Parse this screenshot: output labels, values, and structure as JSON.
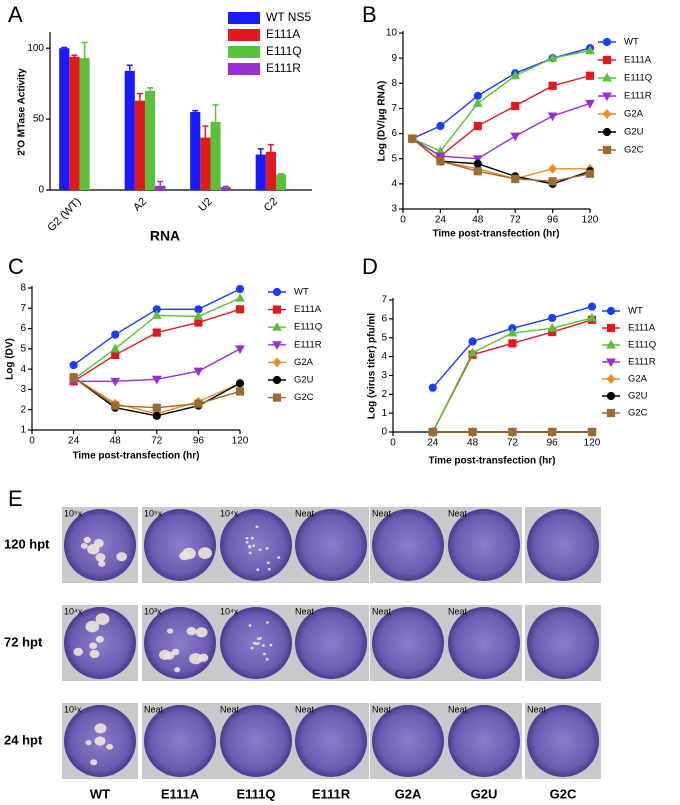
{
  "chart_data": [
    {
      "type": "bar",
      "label": "A",
      "ylabel": "2'O MTase Activity",
      "xlabel": "RNA",
      "categories": [
        "G2 (WT)",
        "A2",
        "U2",
        "C2"
      ],
      "series": [
        {
          "name": "WT NS5",
          "color": "#1a1aff",
          "values": [
            100,
            84,
            55,
            25
          ],
          "errors": [
            0.5,
            4,
            1,
            4
          ]
        },
        {
          "name": "E111A",
          "color": "#e0191e",
          "values": [
            94,
            63,
            37,
            27
          ],
          "errors": [
            1,
            5,
            8,
            5
          ]
        },
        {
          "name": "E111Q",
          "color": "#5bbf3a",
          "values": [
            93,
            70,
            48,
            11
          ],
          "errors": [
            11,
            2,
            12,
            0.5
          ]
        },
        {
          "name": "E111R",
          "color": "#9a2fd6",
          "values": [
            null,
            3,
            2,
            null
          ],
          "errors": [
            null,
            3,
            0.5,
            null
          ]
        }
      ],
      "ylim": [
        0,
        110
      ],
      "yticks": [
        0,
        50,
        100
      ]
    },
    {
      "type": "line",
      "label": "B",
      "ylabel": "Log (DV/µg RNA)",
      "xlabel": "Time post-transfection (hr)",
      "x": [
        6,
        24,
        48,
        72,
        96,
        120
      ],
      "series": [
        {
          "name": "WT",
          "color": "#1a3cff",
          "marker": "circle",
          "values": [
            5.8,
            6.3,
            7.5,
            8.4,
            9.0,
            9.4
          ]
        },
        {
          "name": "E111A",
          "color": "#e0191e",
          "marker": "square",
          "values": [
            5.8,
            5.1,
            6.3,
            7.1,
            7.9,
            8.3
          ]
        },
        {
          "name": "E111Q",
          "color": "#5bbf3a",
          "marker": "triangle",
          "values": [
            5.8,
            5.3,
            7.2,
            8.3,
            9.0,
            9.3
          ]
        },
        {
          "name": "E111R",
          "color": "#9a2fd6",
          "marker": "tri-down",
          "values": [
            5.8,
            5.1,
            5.0,
            5.9,
            6.7,
            7.2
          ]
        },
        {
          "name": "G2A",
          "color": "#f08a1c",
          "marker": "diamond",
          "values": [
            5.8,
            4.9,
            4.6,
            4.2,
            4.6,
            4.6
          ]
        },
        {
          "name": "G2U",
          "color": "#000000",
          "marker": "circle",
          "values": [
            5.8,
            4.9,
            4.8,
            4.3,
            4.0,
            4.5
          ]
        },
        {
          "name": "G2C",
          "color": "#9c6b2e",
          "marker": "square",
          "values": [
            5.8,
            4.9,
            4.5,
            4.2,
            4.1,
            4.4
          ]
        }
      ],
      "xlim": [
        0,
        120
      ],
      "xticks": [
        0,
        24,
        48,
        72,
        96,
        120
      ],
      "ylim": [
        3,
        10
      ],
      "yticks": [
        3,
        4,
        5,
        6,
        7,
        8,
        9,
        10
      ]
    },
    {
      "type": "line",
      "label": "C",
      "ylabel": "Log (DV)",
      "xlabel": "Time post-transfection (hr)",
      "x": [
        24,
        48,
        72,
        96,
        120
      ],
      "series": [
        {
          "name": "WT",
          "color": "#1a3cff",
          "marker": "circle",
          "values": [
            4.2,
            5.7,
            6.95,
            6.95,
            7.95
          ]
        },
        {
          "name": "E111A",
          "color": "#e0191e",
          "marker": "square",
          "values": [
            3.4,
            4.7,
            5.8,
            6.3,
            6.95
          ]
        },
        {
          "name": "E111Q",
          "color": "#5bbf3a",
          "marker": "triangle",
          "values": [
            3.5,
            5.0,
            6.65,
            6.6,
            7.5
          ]
        },
        {
          "name": "E111R",
          "color": "#9a2fd6",
          "marker": "tri-down",
          "values": [
            3.4,
            3.4,
            3.5,
            3.9,
            5.0
          ]
        },
        {
          "name": "G2A",
          "color": "#f08a1c",
          "marker": "diamond",
          "values": [
            3.6,
            2.3,
            1.8,
            2.4,
            3.3
          ]
        },
        {
          "name": "G2U",
          "color": "#000000",
          "marker": "circle",
          "values": [
            3.6,
            2.1,
            1.7,
            2.2,
            3.3
          ]
        },
        {
          "name": "G2C",
          "color": "#9c6b2e",
          "marker": "square",
          "values": [
            3.6,
            2.2,
            2.1,
            2.3,
            2.9
          ]
        }
      ],
      "xlim": [
        0,
        120
      ],
      "xticks": [
        0,
        24,
        48,
        72,
        96,
        120
      ],
      "ylim": [
        1,
        8
      ],
      "yticks": [
        1,
        2,
        3,
        4,
        5,
        6,
        7,
        8
      ]
    },
    {
      "type": "line",
      "label": "D",
      "ylabel": "Log (virus titer) pfu/ml",
      "xlabel": "Time post-transfection (hr)",
      "x": [
        24,
        48,
        72,
        96,
        120
      ],
      "series": [
        {
          "name": "WT",
          "color": "#1a3cff",
          "marker": "circle",
          "values": [
            2.35,
            4.8,
            5.5,
            6.05,
            6.65
          ]
        },
        {
          "name": "E111A",
          "color": "#e0191e",
          "marker": "square",
          "values": [
            0,
            4.1,
            4.7,
            5.3,
            5.95
          ]
        },
        {
          "name": "E111Q",
          "color": "#5bbf3a",
          "marker": "triangle",
          "values": [
            0,
            4.2,
            5.25,
            5.5,
            6.05
          ]
        },
        {
          "name": "E111R",
          "color": "#9a2fd6",
          "marker": "tri-down",
          "values": [
            0,
            0,
            0,
            0,
            0
          ]
        },
        {
          "name": "G2A",
          "color": "#f08a1c",
          "marker": "diamond",
          "values": [
            0,
            0,
            0,
            0,
            0
          ]
        },
        {
          "name": "G2U",
          "color": "#000000",
          "marker": "circle",
          "values": [
            0,
            0,
            0,
            0,
            0
          ]
        },
        {
          "name": "G2C",
          "color": "#9c6b2e",
          "marker": "square",
          "values": [
            0,
            0,
            0,
            0,
            0
          ]
        }
      ],
      "xlim": [
        0,
        120
      ],
      "xticks": [
        0,
        24,
        48,
        72,
        96,
        120
      ],
      "ylim": [
        0,
        7
      ],
      "yticks": [
        0,
        1,
        2,
        3,
        4,
        5,
        6,
        7
      ]
    }
  ],
  "plaque_assay": {
    "label": "E",
    "rows": [
      "120 hpt",
      "72 hpt",
      "24 hpt"
    ],
    "columns": [
      "WT",
      "E111A",
      "E111Q",
      "E111R",
      "G2A",
      "G2U",
      "G2C"
    ],
    "dilutions": [
      [
        "10⁵x",
        "10⁵x",
        "10⁴x",
        "Neat",
        "Neat",
        "Neat",
        null
      ],
      [
        "10⁴x",
        "10³x",
        "10⁴x",
        "Neat",
        "Neat",
        "Neat",
        null
      ],
      [
        "10¹x",
        "Neat",
        "Neat",
        "Neat",
        "Neat",
        "Neat",
        "Neat"
      ]
    ]
  }
}
